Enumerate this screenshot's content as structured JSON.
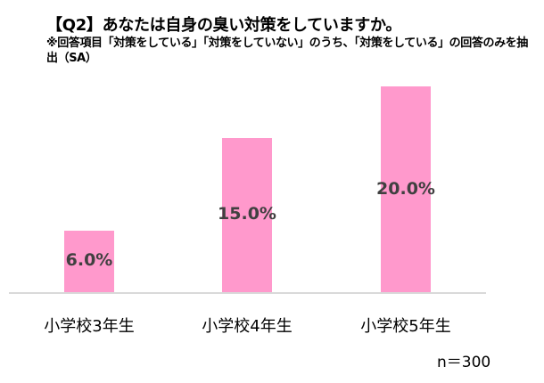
{
  "chart_data": {
    "type": "bar",
    "title": "【Q2】あなたは自身の臭い対策をしていますか。",
    "subtitle": "※回答項目「対策をしている」「対策をしていない」のうち、「対策をしている」の回答のみを抽出（SA）",
    "categories": [
      "小学校3年生",
      "小学校4年生",
      "小学校5年生"
    ],
    "values": [
      6.0,
      15.0,
      20.0
    ],
    "value_labels": [
      "6.0%",
      "15.0%",
      "20.0%"
    ],
    "xlabel": "",
    "ylabel": "",
    "ylim": [
      0,
      20
    ],
    "grid": false,
    "legend": null,
    "bar_color": "#ff99cc",
    "annotation": "n＝300"
  },
  "header": {
    "title": "【Q2】あなたは自身の臭い対策をしていますか。",
    "subtitle": "※回答項目「対策をしている」「対策をしていない」のうち、「対策をしている」の回答のみを抽出（SA）"
  },
  "footer": {
    "sample_size": "n＝300"
  }
}
